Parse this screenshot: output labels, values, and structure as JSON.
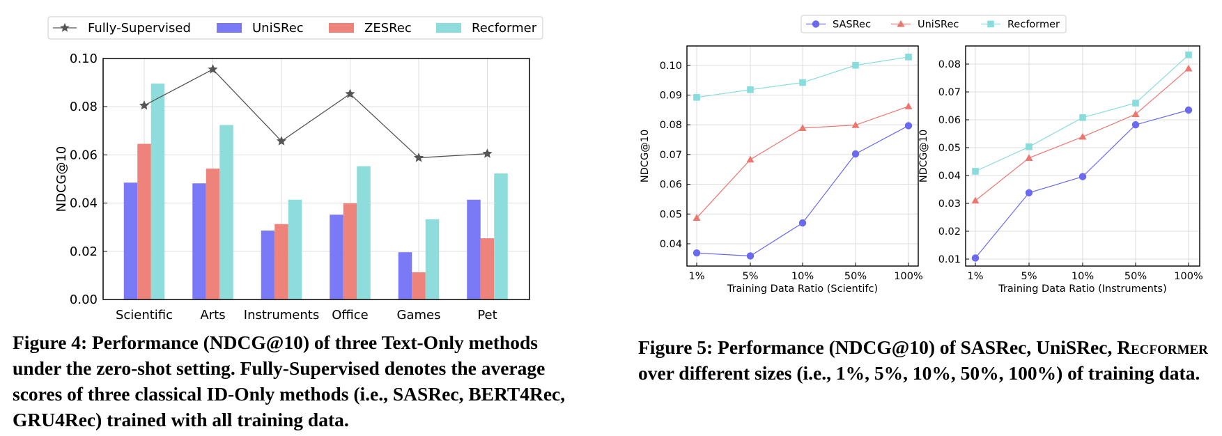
{
  "chart_data": [
    {
      "type": "bar",
      "title": "",
      "xlabel": "",
      "ylabel": "NDCG@10",
      "ylim": [
        0,
        0.1
      ],
      "yticks": [
        "0.00",
        "0.02",
        "0.04",
        "0.06",
        "0.08",
        "0.10"
      ],
      "grid": true,
      "legend": "top",
      "categories": [
        "Scientific",
        "Arts",
        "Instruments",
        "Office",
        "Games",
        "Pet"
      ],
      "series": [
        {
          "name": "UniSRec",
          "color": "#7b7af6",
          "values": [
            0.0485,
            0.0482,
            0.0286,
            0.0352,
            0.0196,
            0.0414
          ]
        },
        {
          "name": "ZESRec",
          "color": "#ed837b",
          "values": [
            0.0646,
            0.0543,
            0.0313,
            0.0399,
            0.0113,
            0.0254
          ]
        },
        {
          "name": "Recformer",
          "color": "#8fdcdc",
          "values": [
            0.0896,
            0.0724,
            0.0414,
            0.0553,
            0.0333,
            0.0523
          ]
        }
      ],
      "line_series": {
        "name": "Fully-Supervised",
        "color": "#555555",
        "marker": "star",
        "values": [
          0.0805,
          0.0955,
          0.0657,
          0.0853,
          0.0588,
          0.0605
        ]
      }
    },
    {
      "type": "line",
      "title": "",
      "xlabel": "Training Data Ratio (Scientifc)",
      "ylabel": "NDCG@10",
      "ylim": [
        0.0325,
        0.1065
      ],
      "yticks": [
        "0.04",
        "0.05",
        "0.06",
        "0.07",
        "0.08",
        "0.09",
        "0.10"
      ],
      "grid": true,
      "categories": [
        "1%",
        "5%",
        "10%",
        "50%",
        "100%"
      ],
      "series": [
        {
          "name": "SASRec",
          "color": "#6a6af0",
          "marker": "circle",
          "values": [
            0.0369,
            0.0359,
            0.047,
            0.0702,
            0.0797
          ]
        },
        {
          "name": "UniSRec",
          "color": "#ec7670",
          "marker": "triangle",
          "values": [
            0.0487,
            0.0683,
            0.0789,
            0.0799,
            0.0862
          ]
        },
        {
          "name": "Recformer",
          "color": "#88dcdc",
          "marker": "square",
          "values": [
            0.0892,
            0.0918,
            0.0942,
            0.1,
            0.1028
          ]
        }
      ]
    },
    {
      "type": "line",
      "title": "",
      "xlabel": "Training Data Ratio (Instruments)",
      "ylabel": "NDCG@10",
      "ylim": [
        0.0075,
        0.0865
      ],
      "yticks": [
        "0.01",
        "0.02",
        "0.03",
        "0.04",
        "0.05",
        "0.06",
        "0.07",
        "0.08"
      ],
      "grid": true,
      "categories": [
        "1%",
        "5%",
        "10%",
        "50%",
        "100%"
      ],
      "series": [
        {
          "name": "SASRec",
          "color": "#6a6af0",
          "marker": "circle",
          "values": [
            0.0104,
            0.0338,
            0.0396,
            0.0582,
            0.0635
          ]
        },
        {
          "name": "UniSRec",
          "color": "#ec7670",
          "marker": "triangle",
          "values": [
            0.031,
            0.0463,
            0.0539,
            0.062,
            0.0784
          ]
        },
        {
          "name": "Recformer",
          "color": "#88dcdc",
          "marker": "square",
          "values": [
            0.0415,
            0.0503,
            0.0608,
            0.066,
            0.0833
          ]
        }
      ]
    }
  ],
  "legend5": [
    "SASRec",
    "UniSRec",
    "Recformer"
  ],
  "captions": {
    "fig4": "Figure 4: Performance (NDCG@10) of three Text-Only methods under the zero-shot setting. Fully-Supervised denotes the average scores of three classical ID-Only methods (i.e., SASRec, BERT4Rec, GRU4Rec) trained with all training data.",
    "fig5_a": "Figure 5: Performance (NDCG@10) of SASRec, UniSRec, ",
    "fig5_sc": "Recformer",
    "fig5_b": " over different sizes (i.e., 1%, 5%, 10%, 50%, 100%) of training data."
  }
}
